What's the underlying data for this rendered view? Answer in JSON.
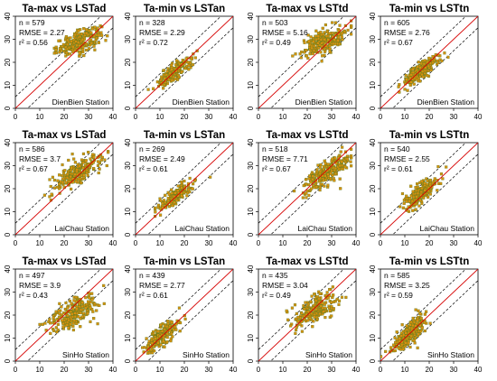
{
  "chart_data": [
    {
      "type": "scatter",
      "title": "Ta-max vs LSTad",
      "n": "n = 579",
      "rmse": "RMSE = 2.27",
      "r2": "r² = 0.56",
      "station": "DienBien Station",
      "xlim": [
        0,
        40
      ],
      "ylim": [
        0,
        40
      ],
      "ticks": [
        "0",
        "10",
        "20",
        "30",
        "40"
      ],
      "cluster": {
        "cx": 26,
        "cy": 29,
        "sx": 4.5,
        "sy": 2.8,
        "rho": 0.6,
        "n": 240,
        "min": 16
      }
    },
    {
      "type": "scatter",
      "title": "Ta-min vs LSTan",
      "n": "n = 328",
      "rmse": "RMSE = 2.29",
      "r2": "r² = 0.72",
      "station": "DienBien Station",
      "xlim": [
        0,
        40
      ],
      "ylim": [
        0,
        40
      ],
      "ticks": [
        "0",
        "10",
        "20",
        "30",
        "40"
      ],
      "cluster": {
        "cx": 16,
        "cy": 16,
        "sx": 3.5,
        "sy": 3.2,
        "rho": 0.85,
        "n": 200,
        "min": 4
      }
    },
    {
      "type": "scatter",
      "title": "Ta-max vs LSTtd",
      "n": "n = 503",
      "rmse": "RMSE = 5.16",
      "r2": "r² = 0.49",
      "station": "DienBien Station",
      "xlim": [
        0,
        40
      ],
      "ylim": [
        0,
        40
      ],
      "ticks": [
        "0",
        "10",
        "20",
        "30",
        "40"
      ],
      "cluster": {
        "cx": 27,
        "cy": 29,
        "sx": 4.5,
        "sy": 3.2,
        "rho": 0.55,
        "n": 230,
        "min": 14
      }
    },
    {
      "type": "scatter",
      "title": "Ta-min vs LSTtn",
      "n": "n = 605",
      "rmse": "RMSE = 2.76",
      "r2": "r² = 0.67",
      "station": "DienBien Station",
      "xlim": [
        0,
        40
      ],
      "ylim": [
        0,
        40
      ],
      "ticks": [
        "0",
        "10",
        "20",
        "30",
        "40"
      ],
      "cluster": {
        "cx": 16,
        "cy": 16,
        "sx": 3.5,
        "sy": 3.0,
        "rho": 0.8,
        "n": 240,
        "min": 5
      }
    },
    {
      "type": "scatter",
      "title": "Ta-max vs LSTad",
      "n": "n = 586",
      "rmse": "RMSE = 3.7",
      "r2": "r² = 0.67",
      "station": "LaiChau Station",
      "xlim": [
        0,
        40
      ],
      "ylim": [
        0,
        40
      ],
      "ticks": [
        "0",
        "10",
        "20",
        "30",
        "40"
      ],
      "cluster": {
        "cx": 25,
        "cy": 27,
        "sx": 5.0,
        "sy": 4.0,
        "rho": 0.75,
        "n": 240,
        "min": 12
      }
    },
    {
      "type": "scatter",
      "title": "Ta-min vs LSTan",
      "n": "n = 269",
      "rmse": "RMSE = 2.49",
      "r2": "r² = 0.61",
      "station": "LaiChau Station",
      "xlim": [
        0,
        40
      ],
      "ylim": [
        0,
        40
      ],
      "ticks": [
        "0",
        "10",
        "20",
        "30",
        "40"
      ],
      "cluster": {
        "cx": 17,
        "cy": 17,
        "sx": 3.5,
        "sy": 3.0,
        "rho": 0.8,
        "n": 180,
        "min": 8
      }
    },
    {
      "type": "scatter",
      "title": "Ta-max vs LSTtd",
      "n": "n = 518",
      "rmse": "RMSE = 7.71",
      "r2": "r² = 0.67",
      "station": "LaiChau Station",
      "xlim": [
        0,
        40
      ],
      "ylim": [
        0,
        40
      ],
      "ticks": [
        "0",
        "10",
        "20",
        "30",
        "40"
      ],
      "cluster": {
        "cx": 28,
        "cy": 27,
        "sx": 5.0,
        "sy": 4.0,
        "rho": 0.75,
        "n": 230,
        "min": 14
      }
    },
    {
      "type": "scatter",
      "title": "Ta-min vs LSTtn",
      "n": "n = 540",
      "rmse": "RMSE = 2.55",
      "r2": "r² = 0.61",
      "station": "LaiChau Station",
      "xlim": [
        0,
        40
      ],
      "ylim": [
        0,
        40
      ],
      "ticks": [
        "0",
        "10",
        "20",
        "30",
        "40"
      ],
      "cluster": {
        "cx": 17,
        "cy": 18,
        "sx": 3.5,
        "sy": 3.5,
        "rho": 0.8,
        "n": 220,
        "min": 8
      }
    },
    {
      "type": "scatter",
      "title": "Ta-max vs LSTad",
      "n": "n = 497",
      "rmse": "RMSE = 3.9",
      "r2": "r² = 0.43",
      "station": "SinHo Station",
      "xlim": [
        0,
        40
      ],
      "ylim": [
        0,
        40
      ],
      "ticks": [
        "0",
        "10",
        "20",
        "30",
        "40"
      ],
      "cluster": {
        "cx": 24,
        "cy": 21,
        "sx": 4.5,
        "sy": 3.5,
        "rho": 0.55,
        "n": 230,
        "min": 10
      }
    },
    {
      "type": "scatter",
      "title": "Ta-min vs LSTan",
      "n": "n = 439",
      "rmse": "RMSE = 2.77",
      "r2": "r² = 0.61",
      "station": "SinHo Station",
      "xlim": [
        0,
        40
      ],
      "ylim": [
        0,
        40
      ],
      "ticks": [
        "0",
        "10",
        "20",
        "30",
        "40"
      ],
      "cluster": {
        "cx": 11,
        "cy": 11,
        "sx": 3.5,
        "sy": 3.5,
        "rho": 0.8,
        "n": 200,
        "min": 0
      }
    },
    {
      "type": "scatter",
      "title": "Ta-max vs LSTtd",
      "n": "n = 435",
      "rmse": "RMSE = 3.04",
      "r2": "r² = 0.49",
      "station": "SinHo Station",
      "xlim": [
        0,
        40
      ],
      "ylim": [
        0,
        40
      ],
      "ticks": [
        "0",
        "10",
        "20",
        "30",
        "40"
      ],
      "cluster": {
        "cx": 23,
        "cy": 22,
        "sx": 4.5,
        "sy": 3.5,
        "rho": 0.6,
        "n": 220,
        "min": 10
      }
    },
    {
      "type": "scatter",
      "title": "Ta-min vs LSTtn",
      "n": "n = 585",
      "rmse": "RMSE = 3.25",
      "r2": "r² = 0.59",
      "station": "SinHo Station",
      "xlim": [
        0,
        40
      ],
      "ylim": [
        0,
        40
      ],
      "ticks": [
        "0",
        "10",
        "20",
        "30",
        "40"
      ],
      "cluster": {
        "cx": 12,
        "cy": 12,
        "sx": 3.5,
        "sy": 4.0,
        "rho": 0.8,
        "n": 230,
        "min": 0
      }
    }
  ],
  "colors": {
    "point_fill": "#d7900f",
    "point_stroke": "#5d7c1e",
    "fit_line": "#d60000",
    "identity_band": "#000000"
  }
}
